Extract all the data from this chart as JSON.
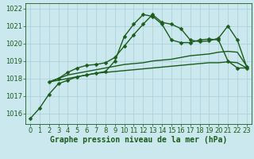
{
  "title": "Graphe pression niveau de la mer (hPa)",
  "background_color": "#cce8ef",
  "grid_color": "#aacdd6",
  "line_color": "#1a5c1a",
  "xlim": [
    -0.5,
    23.5
  ],
  "ylim": [
    1015.4,
    1022.3
  ],
  "xticks": [
    0,
    1,
    2,
    3,
    4,
    5,
    6,
    7,
    8,
    9,
    10,
    11,
    12,
    13,
    14,
    15,
    16,
    17,
    18,
    19,
    20,
    21,
    22,
    23
  ],
  "yticks": [
    1016,
    1017,
    1018,
    1019,
    1020,
    1021,
    1022
  ],
  "series0_x": [
    0,
    1,
    2,
    3,
    4,
    5,
    6,
    7,
    8,
    9,
    10,
    11,
    12,
    13,
    14,
    15,
    16,
    17,
    18,
    19,
    20,
    21,
    22,
    23
  ],
  "series0_y": [
    1015.7,
    1016.3,
    1017.1,
    1017.7,
    1017.9,
    1018.1,
    1018.2,
    1018.3,
    1018.4,
    1019.0,
    1020.4,
    1021.1,
    1021.65,
    1021.55,
    1021.1,
    1020.2,
    1020.05,
    1020.05,
    1020.2,
    1020.25,
    1020.2,
    1019.0,
    1018.6,
    1018.6
  ],
  "series1_x": [
    2,
    3,
    4,
    5,
    6,
    7,
    8,
    9,
    10,
    11,
    12,
    13,
    14,
    15,
    16,
    17,
    18,
    19,
    20,
    21,
    22,
    23
  ],
  "series1_y": [
    1017.8,
    1018.0,
    1018.2,
    1018.3,
    1018.4,
    1018.5,
    1018.6,
    1018.7,
    1018.8,
    1018.85,
    1018.9,
    1019.0,
    1019.05,
    1019.1,
    1019.2,
    1019.3,
    1019.35,
    1019.4,
    1019.5,
    1019.55,
    1019.5,
    1018.7
  ],
  "series2_x": [
    2,
    3,
    4,
    5,
    6,
    7,
    8,
    9,
    10,
    11,
    12,
    13,
    14,
    15,
    16,
    17,
    18,
    19,
    20,
    21,
    22,
    23
  ],
  "series2_y": [
    1017.8,
    1017.9,
    1018.0,
    1018.1,
    1018.2,
    1018.3,
    1018.35,
    1018.4,
    1018.45,
    1018.5,
    1018.55,
    1018.6,
    1018.65,
    1018.7,
    1018.75,
    1018.8,
    1018.85,
    1018.9,
    1018.9,
    1018.95,
    1018.9,
    1018.6
  ],
  "series3_x": [
    2,
    3,
    4,
    5,
    6,
    7,
    8,
    9,
    10,
    11,
    12,
    13,
    14,
    15,
    16,
    17,
    18,
    19,
    20,
    21,
    22,
    23
  ],
  "series3_y": [
    1017.8,
    1018.0,
    1018.35,
    1018.6,
    1018.75,
    1018.8,
    1018.9,
    1019.2,
    1019.85,
    1020.5,
    1021.1,
    1021.65,
    1021.2,
    1021.1,
    1020.85,
    1020.2,
    1020.1,
    1020.15,
    1020.3,
    1021.0,
    1020.2,
    1018.65
  ],
  "tick_fontsize": 6,
  "xlabel_fontsize": 7,
  "line_width": 1.0,
  "marker_size": 2.5
}
